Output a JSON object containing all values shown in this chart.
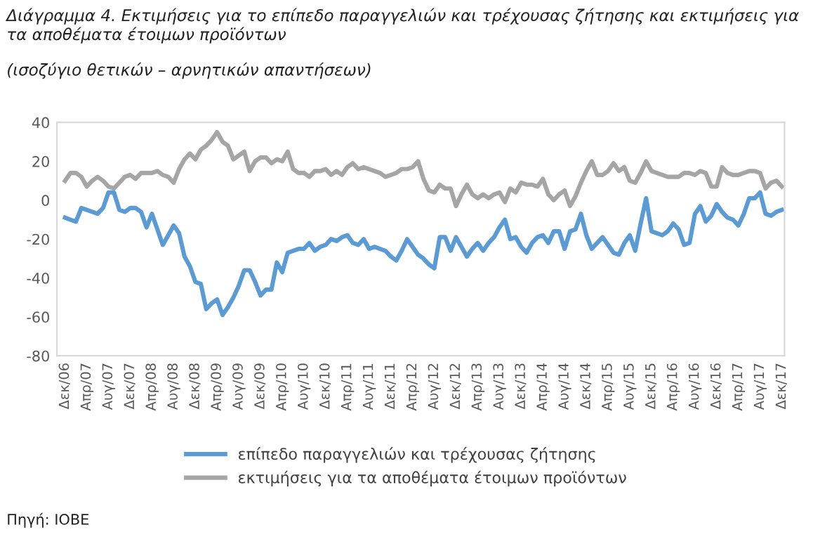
{
  "chart_data": {
    "type": "line",
    "title": "Διάγραμμα 4. Εκτιμήσεις για το επίπεδο παραγγελιών και τρέχουσας ζήτησης και εκτιμήσεις για τα αποθέματα έτοιμων προϊόντων",
    "subtitle": "(ισοζύγιο θετικών – αρνητικών απαντήσεων)",
    "annotations": [
      "Πηγή: IOBE"
    ],
    "categories": [
      "Δεκ/06",
      null,
      null,
      null,
      "Απρ/07",
      null,
      null,
      null,
      "Αυγ/07",
      null,
      null,
      null,
      "Δεκ/07",
      null,
      null,
      null,
      "Απρ/08",
      null,
      null,
      null,
      "Αυγ/08",
      null,
      null,
      null,
      "Δεκ/08",
      null,
      null,
      null,
      "Απρ/09",
      null,
      null,
      null,
      "Αυγ/09",
      null,
      null,
      null,
      "Δεκ/09",
      null,
      null,
      null,
      "Απρ/10",
      null,
      null,
      null,
      "Αυγ/10",
      null,
      null,
      null,
      "Δεκ/10",
      null,
      null,
      null,
      "Απρ/11",
      null,
      null,
      null,
      "Αυγ/11",
      null,
      null,
      null,
      "Δεκ/11",
      null,
      null,
      null,
      "Απρ/12",
      null,
      null,
      null,
      "Αυγ/12",
      null,
      null,
      null,
      "Δεκ/12",
      null,
      null,
      null,
      "Απρ/13",
      null,
      null,
      null,
      "Αυγ/13",
      null,
      null,
      null,
      "Δεκ/13",
      null,
      null,
      null,
      "Απρ/14",
      null,
      null,
      null,
      "Αυγ/14",
      null,
      null,
      null,
      "Δεκ/14",
      null,
      null,
      null,
      "Απρ/15",
      null,
      null,
      null,
      "Αυγ/15",
      null,
      null,
      null,
      "Δεκ/15",
      null,
      null,
      null,
      "Απρ/16",
      null,
      null,
      null,
      "Αυγ/16",
      null,
      null,
      null,
      "Δεκ/16",
      null,
      null,
      null,
      "Απρ/17",
      null,
      null,
      null,
      "Αυγ/17",
      null,
      null,
      null,
      "Δεκ/17"
    ],
    "series": [
      {
        "name": "επίπεδο παραγγελιών και τρέχουσας ζήτησης",
        "color": "#5b9bd5",
        "values": [
          -9,
          -10,
          -11,
          -4,
          -5,
          -6,
          -7,
          -4,
          4,
          4,
          -5,
          -6,
          -4,
          -4,
          -6,
          -14,
          -7,
          -15,
          -23,
          -18,
          -13,
          -17,
          -29,
          -34,
          -42,
          -43,
          -56,
          -53,
          -51,
          -59,
          -55,
          -50,
          -44,
          -36,
          -36,
          -42,
          -49,
          -46,
          -46,
          -32,
          -37,
          -27,
          -26,
          -25,
          -25,
          -22,
          -26,
          -24,
          -23,
          -20,
          -21,
          -19,
          -18,
          -22,
          -23,
          -20,
          -25,
          -24,
          -25,
          -26,
          -29,
          -31,
          -26,
          -20,
          -24,
          -28,
          -30,
          -33,
          -35,
          -19,
          -19,
          -26,
          -19,
          -24,
          -29,
          -25,
          -22,
          -26,
          -22,
          -19,
          -14,
          -10,
          -20,
          -19,
          -24,
          -27,
          -22,
          -19,
          -18,
          -22,
          -16,
          -16,
          -25,
          -16,
          -15,
          -7,
          -18,
          -25,
          -22,
          -19,
          -23,
          -27,
          -28,
          -22,
          -18,
          -26,
          -12,
          1,
          -16,
          -17,
          -18,
          -16,
          -12,
          -15,
          -23,
          -22,
          -7,
          -3,
          -11,
          -8,
          -2,
          -6,
          -9,
          -10,
          -13,
          -7,
          1,
          1,
          4,
          -7,
          -8,
          -6,
          -5
        ]
      },
      {
        "name": "εκτιμήσεις για τα αποθέματα έτοιμων προϊόντων",
        "color": "#a5a5a5",
        "values": [
          10,
          14,
          14,
          12,
          7,
          10,
          12,
          10,
          7,
          6,
          9,
          12,
          13,
          11,
          14,
          14,
          14,
          15,
          13,
          12,
          9,
          16,
          21,
          24,
          21,
          26,
          28,
          31,
          35,
          30,
          28,
          21,
          23,
          25,
          15,
          20,
          22,
          22,
          19,
          21,
          20,
          25,
          16,
          14,
          14,
          12,
          15,
          15,
          16,
          13,
          15,
          13,
          17,
          19,
          16,
          17,
          16,
          15,
          14,
          12,
          13,
          14,
          16,
          16,
          17,
          20,
          11,
          5,
          4,
          8,
          6,
          6,
          -3,
          3,
          8,
          3,
          1,
          3,
          1,
          3,
          4,
          -1,
          6,
          4,
          9,
          8,
          8,
          7,
          11,
          3,
          0,
          3,
          5,
          -3,
          2,
          9,
          15,
          20,
          13,
          13,
          15,
          19,
          15,
          17,
          10,
          9,
          14,
          20,
          15,
          14,
          13,
          12,
          12,
          12,
          14,
          14,
          13,
          15,
          14,
          7,
          7,
          17,
          14,
          13,
          13,
          14,
          15,
          15,
          14,
          6,
          9,
          10,
          7
        ]
      }
    ],
    "ylim": [
      -80,
      40
    ],
    "yticks": [
      -80,
      -60,
      -40,
      -20,
      0,
      20,
      40
    ],
    "grid": false,
    "legend": "bottom",
    "marker": "none",
    "line_style": "solid"
  }
}
